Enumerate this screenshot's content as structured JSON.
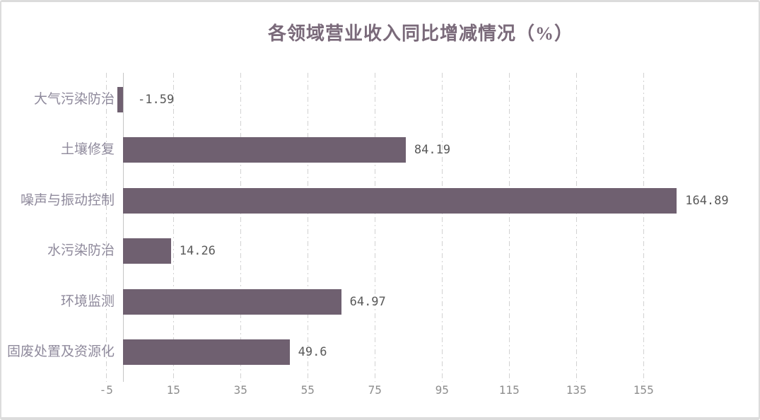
{
  "chart_data": {
    "type": "bar",
    "orientation": "horizontal",
    "title": "各领域营业收入同比增减情况（%）",
    "categories": [
      "大气污染防治",
      "土壤修复",
      "噪声与振动控制",
      "水污染防治",
      "环境监测",
      "固废处置及资源化"
    ],
    "values": [
      -1.59,
      84.19,
      164.89,
      14.26,
      64.97,
      49.6
    ],
    "value_labels": [
      "-1.59",
      "84.19",
      "164.89",
      "14.26",
      "64.97",
      "49.6"
    ],
    "x_ticks": [
      -5,
      15,
      35,
      55,
      75,
      95,
      115,
      135,
      155
    ],
    "xlim": [
      -5,
      190
    ],
    "xlabel": "",
    "ylabel": "",
    "legend": "none",
    "grid": "vertical-dash-dot",
    "colors": {
      "bar": "#6F6070",
      "title": "#7A6A7A",
      "category_label": "#8F8A9C",
      "value_label": "#595959",
      "tick_label": "#8E8E8E",
      "gridline": "#D2D2D2",
      "axis_line": "#C6C6C6",
      "canvas_border": "#DCDCDC",
      "background": "#FFFFFF"
    }
  }
}
